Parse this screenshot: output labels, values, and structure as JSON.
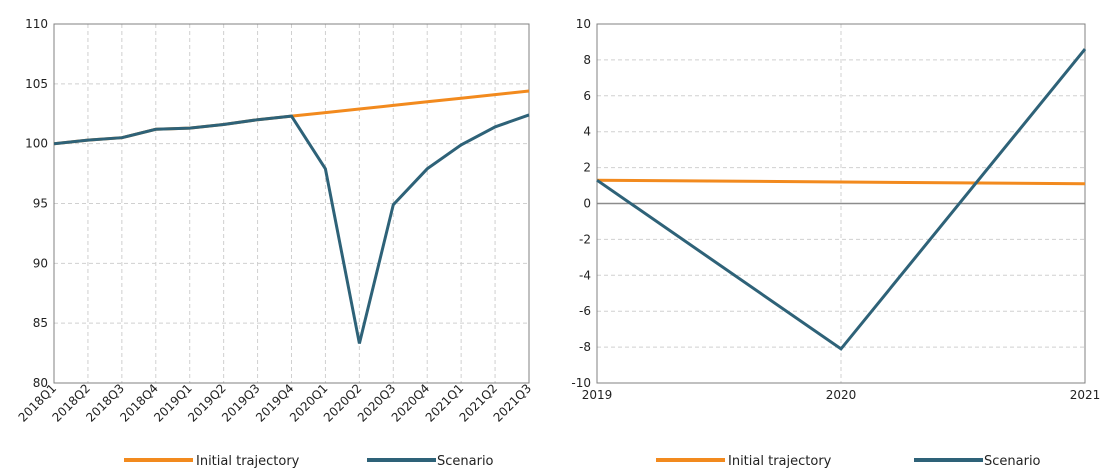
{
  "chart_data": [
    {
      "type": "line",
      "title": "",
      "xlabel": "",
      "ylabel": "",
      "categories": [
        "2018Q1",
        "2018Q2",
        "2018Q3",
        "2018Q4",
        "2019Q1",
        "2019Q2",
        "2019Q3",
        "2019Q4",
        "2020Q1",
        "2020Q2",
        "2020Q3",
        "2020Q4",
        "2021Q1",
        "2021Q2",
        "2021Q3"
      ],
      "ylim": [
        80,
        110
      ],
      "yticks": [
        "80",
        "85",
        "90",
        "95",
        "100",
        "105",
        "110"
      ],
      "grid": "dashed, x and y",
      "legend": "bottom",
      "series": [
        {
          "name": "Initial trajectory",
          "color": "#F28A1E",
          "values": [
            100.0,
            100.3,
            100.5,
            101.2,
            101.3,
            101.6,
            102.0,
            102.3,
            102.6,
            102.9,
            103.2,
            103.5,
            103.8,
            104.1,
            104.4
          ]
        },
        {
          "name": "Scenario",
          "color": "#2E6278",
          "values": [
            100.0,
            100.3,
            100.5,
            101.2,
            101.3,
            101.6,
            102.0,
            102.3,
            97.9,
            83.3,
            94.9,
            97.9,
            99.9,
            101.4,
            102.4
          ]
        }
      ]
    },
    {
      "type": "line",
      "title": "",
      "xlabel": "",
      "ylabel": "",
      "categories": [
        "2019",
        "2020",
        "2021"
      ],
      "ylim": [
        -10,
        10
      ],
      "yticks": [
        "-10",
        "-8",
        "-6",
        "-4",
        "-2",
        "0",
        "2",
        "4",
        "6",
        "8",
        "10"
      ],
      "grid": "dashed, x and y; solid zero line",
      "legend": "bottom",
      "series": [
        {
          "name": "Initial trajectory",
          "color": "#F28A1E",
          "values": [
            1.3,
            1.2,
            1.1
          ]
        },
        {
          "name": "Scenario",
          "color": "#2E6278",
          "values": [
            1.3,
            -8.1,
            8.6
          ]
        }
      ]
    }
  ]
}
